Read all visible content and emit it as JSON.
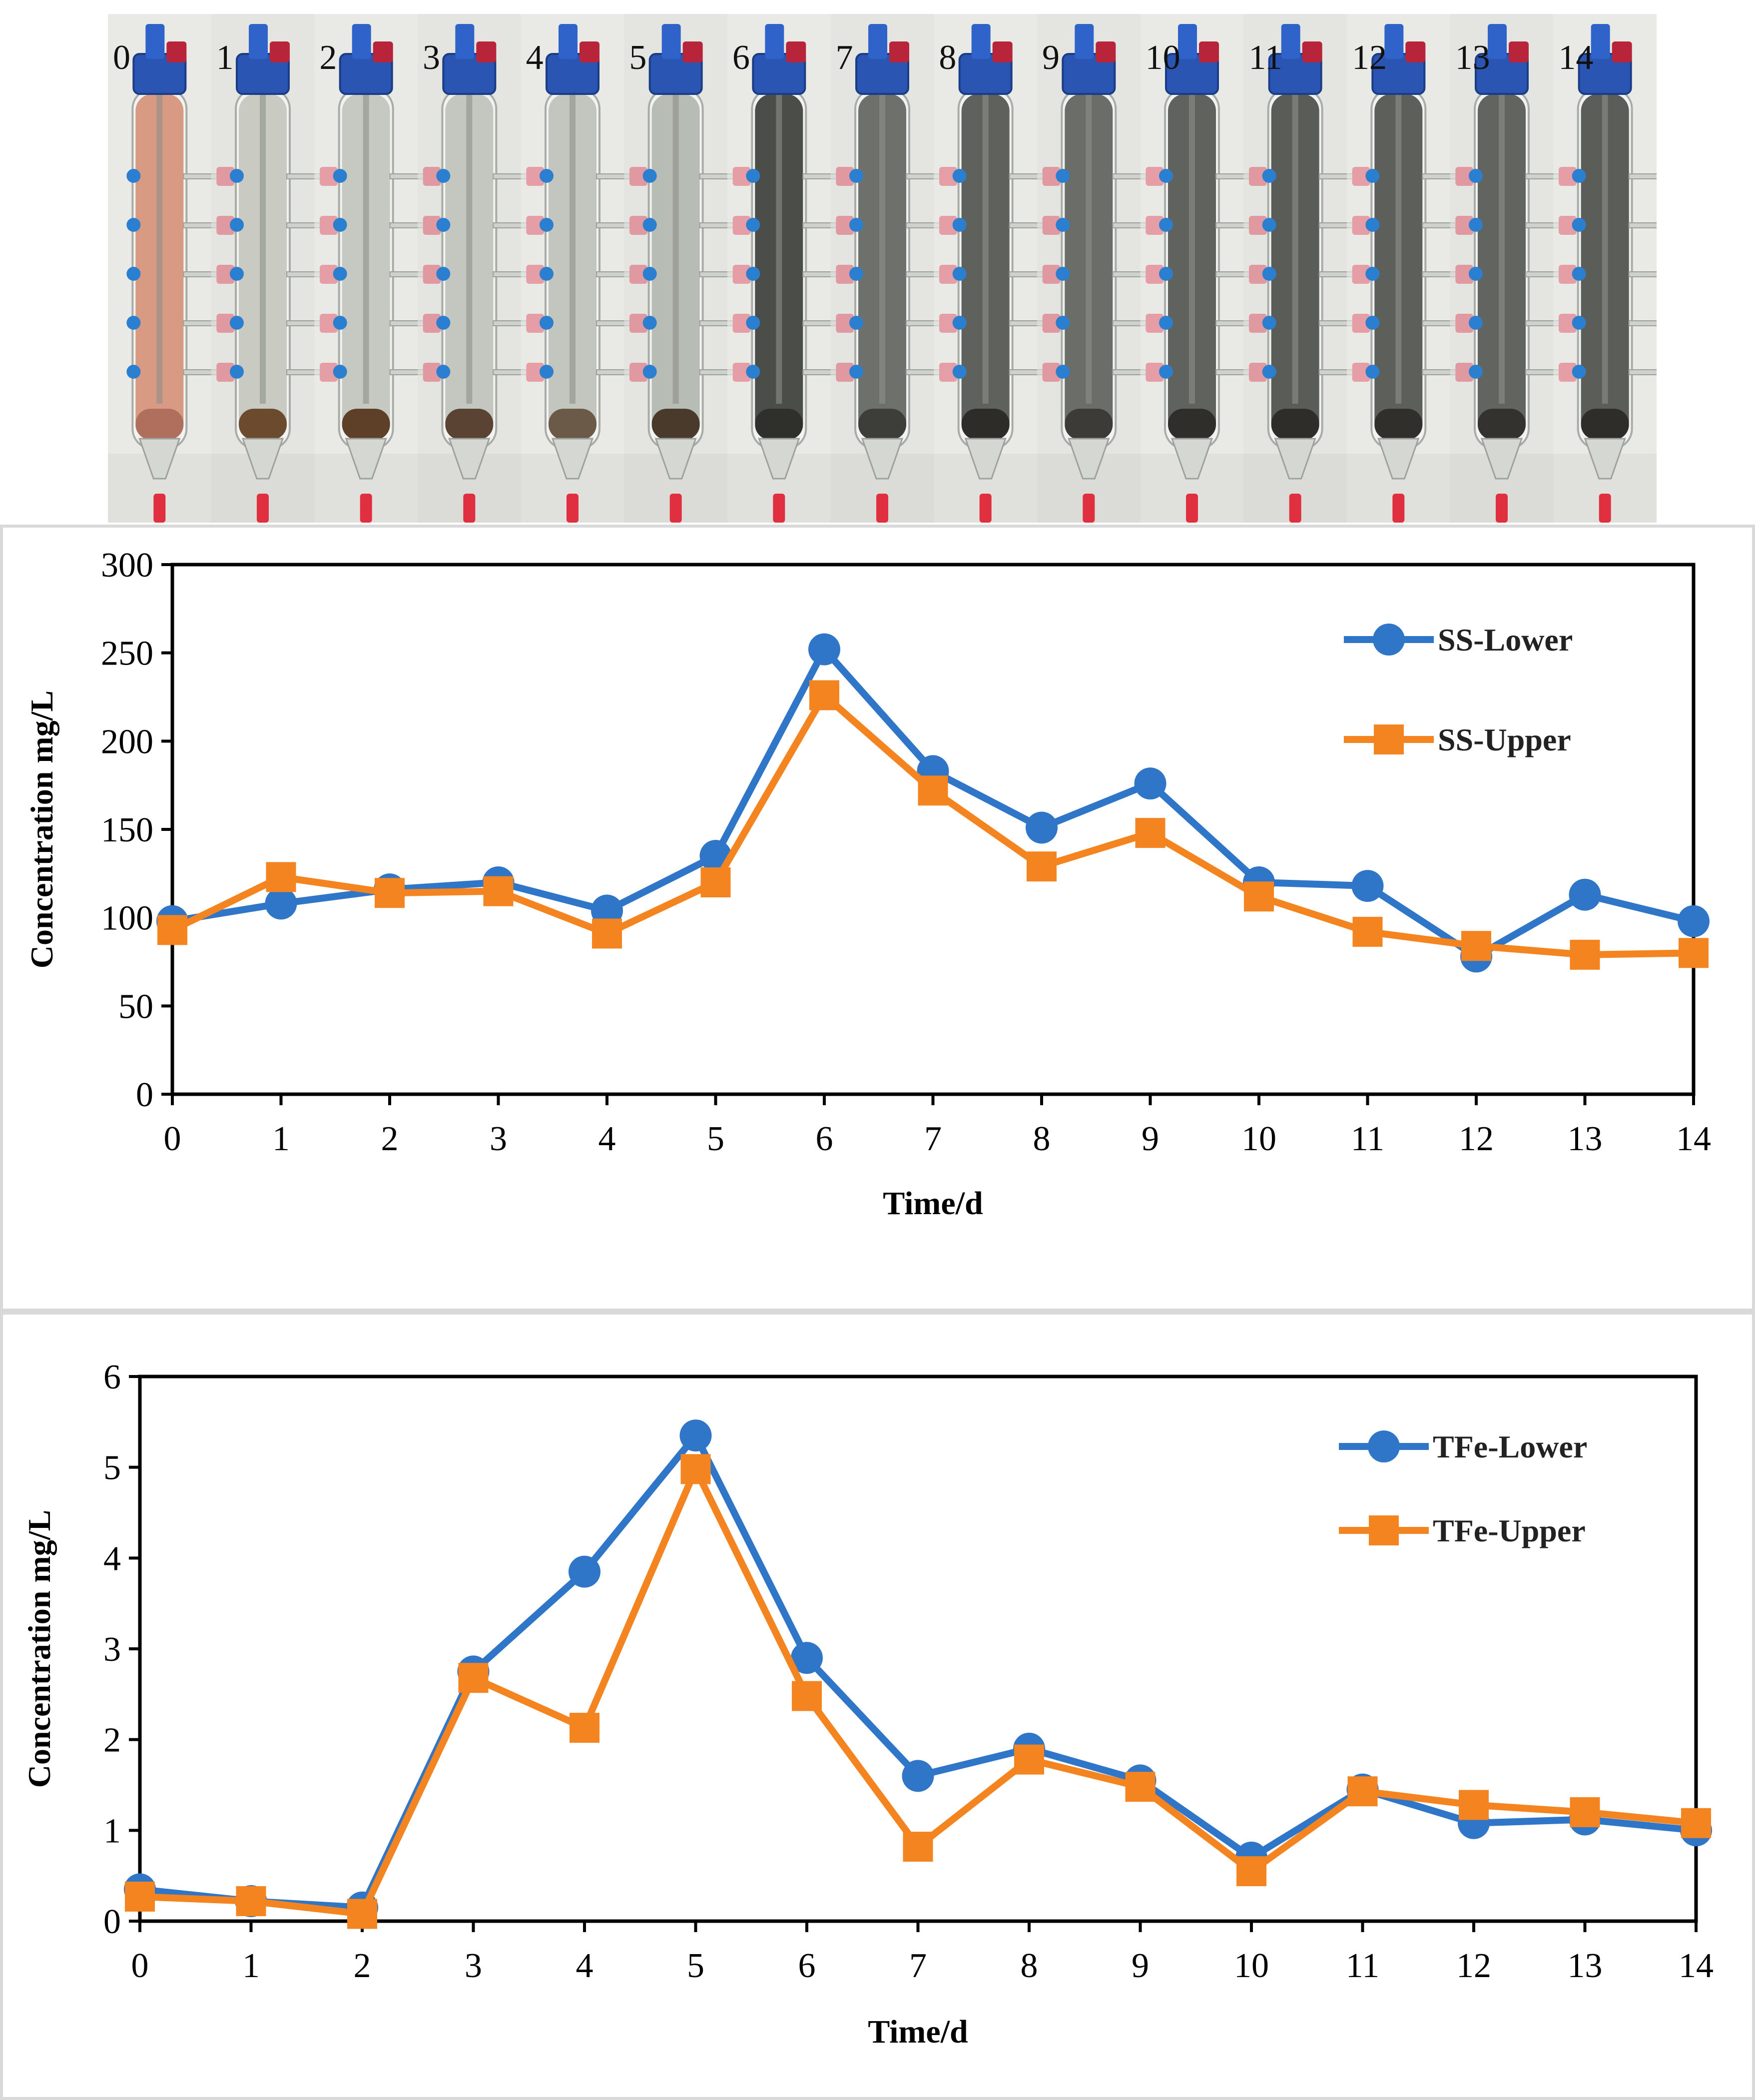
{
  "photo": {
    "column_labels": [
      "0",
      "1",
      "2",
      "3",
      "4",
      "5",
      "6",
      "7",
      "8",
      "9",
      "10",
      "11",
      "12",
      "13",
      "14"
    ],
    "liquid_colors": [
      "#d99a84",
      "#c9cbc2",
      "#c6c9c1",
      "#c4c7c0",
      "#c3c6bf",
      "#b7bcb5",
      "#4b4d48",
      "#6e716b",
      "#5e615c",
      "#6a6d68",
      "#5f625d",
      "#595c57",
      "#5c5f5a",
      "#62655f",
      "#5a5d58"
    ],
    "sediment_colors": [
      "#b06e5c",
      "#6b4a2e",
      "#5e3f28",
      "#5a4332",
      "#6b5a48",
      "#4a3a2c",
      "#2f2f2c",
      "#3d3d39",
      "#2d2c29",
      "#3c3b37",
      "#2f2e2b",
      "#2e2d2a",
      "#302f2c",
      "#33322f",
      "#2e2d2a"
    ]
  },
  "chart_data": [
    {
      "type": "line",
      "xlabel": "Time/d",
      "ylabel": "Concentration mg/L",
      "x": [
        0,
        1,
        2,
        3,
        4,
        5,
        6,
        7,
        8,
        9,
        10,
        11,
        12,
        13,
        14
      ],
      "xticks": [
        "0",
        "1",
        "2",
        "3",
        "4",
        "5",
        "6",
        "7",
        "8",
        "9",
        "10",
        "11",
        "12",
        "13",
        "14"
      ],
      "yticks": [
        "0",
        "50",
        "100",
        "150",
        "200",
        "250",
        "300"
      ],
      "ylim": [
        0,
        300
      ],
      "xlim": [
        0,
        14
      ],
      "legend_position": "top-right",
      "series": [
        {
          "name": "SS-Lower",
          "color": "#2f75c8",
          "marker": "circle",
          "values": [
            98,
            108,
            116,
            120,
            104,
            135,
            252,
            183,
            151,
            176,
            120,
            118,
            78,
            113,
            98
          ]
        },
        {
          "name": "SS-Upper",
          "color": "#f4841f",
          "marker": "square",
          "values": [
            93,
            123,
            114,
            115,
            91,
            120,
            226,
            172,
            129,
            148,
            112,
            92,
            84,
            79,
            80
          ]
        }
      ]
    },
    {
      "type": "line",
      "xlabel": "Time/d",
      "ylabel": "Concentration mg/L",
      "x": [
        0,
        1,
        2,
        3,
        4,
        5,
        6,
        7,
        8,
        9,
        10,
        11,
        12,
        13,
        14
      ],
      "xticks": [
        "0",
        "1",
        "2",
        "3",
        "4",
        "5",
        "6",
        "7",
        "8",
        "9",
        "10",
        "11",
        "12",
        "13",
        "14"
      ],
      "yticks": [
        "0",
        "1",
        "2",
        "3",
        "4",
        "5",
        "6"
      ],
      "ylim": [
        0,
        6
      ],
      "xlim": [
        0,
        14
      ],
      "legend_position": "top-right",
      "series": [
        {
          "name": "TFe-Lower",
          "color": "#2f75c8",
          "marker": "circle",
          "values": [
            0.35,
            0.22,
            0.15,
            2.75,
            3.85,
            5.35,
            2.9,
            1.6,
            1.9,
            1.55,
            0.7,
            1.45,
            1.08,
            1.12,
            1.0
          ]
        },
        {
          "name": "TFe-Upper",
          "color": "#f4841f",
          "marker": "square",
          "values": [
            0.27,
            0.22,
            0.08,
            2.68,
            2.13,
            4.98,
            2.48,
            0.82,
            1.78,
            1.48,
            0.55,
            1.43,
            1.28,
            1.2,
            1.08
          ]
        }
      ]
    }
  ]
}
